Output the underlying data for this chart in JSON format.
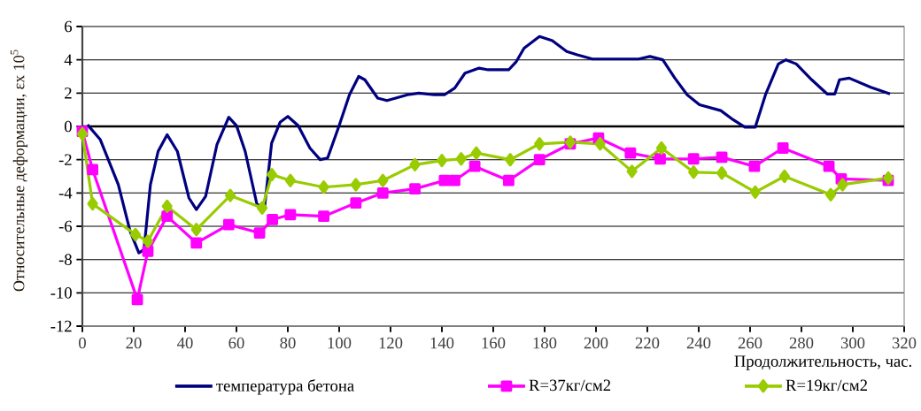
{
  "chart_data": {
    "type": "line",
    "ylabel": "Относительные деформации, εx 10$^{5}$",
    "xlabel": "Продолжительность, час.",
    "xlim": [
      0,
      320
    ],
    "xticks": [
      0,
      20,
      40,
      60,
      80,
      100,
      120,
      140,
      160,
      180,
      200,
      220,
      240,
      260,
      280,
      300,
      320
    ],
    "ylim": [
      -12,
      6
    ],
    "yticks": [
      -12,
      -10,
      -8,
      -6,
      -4,
      -2,
      0,
      2,
      4,
      6
    ],
    "grid": "y",
    "legend": "bottom",
    "series": [
      {
        "name": "температура бетона",
        "color": "#000080",
        "marker": "none",
        "x": [
          2,
          7,
          14,
          18.6,
          22,
          24,
          26.5,
          29.5,
          33,
          37,
          41.5,
          44.4,
          48,
          52.4,
          57,
          60,
          63.4,
          68,
          71,
          73.7,
          77,
          80,
          84,
          88.6,
          92.6,
          95.5,
          100,
          104,
          107.6,
          110,
          115,
          118.6,
          122,
          126.6,
          131,
          137,
          141,
          145,
          149,
          154.5,
          158,
          166,
          169,
          172,
          178,
          183,
          188.6,
          192.7,
          198.6,
          216.6,
          221,
          226,
          230.7,
          235.5,
          240.3,
          248.6,
          253.4,
          258,
          262,
          266,
          271,
          274,
          278,
          284,
          290,
          293,
          294.8,
          298.6,
          307,
          314.5
        ],
        "values": [
          0.1,
          -0.8,
          -3.5,
          -6.3,
          -7.6,
          -7.4,
          -3.5,
          -1.5,
          -0.5,
          -1.5,
          -4.3,
          -5.0,
          -4.2,
          -1.1,
          0.55,
          0.05,
          -1.5,
          -4.7,
          -4.8,
          -1,
          0.25,
          0.6,
          0.05,
          -1.3,
          -2.0,
          -1.9,
          0.05,
          1.9,
          3.0,
          2.8,
          1.7,
          1.55,
          1.7,
          1.9,
          2.0,
          1.9,
          1.9,
          2.3,
          3.2,
          3.5,
          3.4,
          3.4,
          3.9,
          4.7,
          5.4,
          5.15,
          4.5,
          4.3,
          4.05,
          4.05,
          4.2,
          4.0,
          2.9,
          1.9,
          1.3,
          0.95,
          0.4,
          -0.05,
          -0.05,
          1.9,
          3.75,
          4.0,
          3.75,
          2.8,
          1.95,
          1.95,
          2.8,
          2.9,
          2.35,
          1.95
        ]
      },
      {
        "name": "R=37кг/см2",
        "color": "#ff00ff",
        "marker": "square",
        "x": [
          0,
          4,
          21.4,
          25.5,
          33,
          44.4,
          57,
          69,
          74,
          81,
          94,
          106.5,
          117,
          129.5,
          141,
          145,
          152.8,
          166,
          178,
          190,
          201,
          213.4,
          225,
          238,
          249,
          261.7,
          272.8,
          290.7,
          295.5,
          313.8
        ],
        "values": [
          -0.3,
          -2.6,
          -10.4,
          -7.5,
          -5.4,
          -7.0,
          -5.9,
          -6.4,
          -5.6,
          -5.3,
          -5.4,
          -4.6,
          -4.0,
          -3.75,
          -3.25,
          -3.25,
          -2.4,
          -3.25,
          -2.0,
          -1.05,
          -0.7,
          -1.6,
          -1.95,
          -1.95,
          -1.85,
          -2.4,
          -1.3,
          -2.4,
          -3.15,
          -3.25
        ]
      },
      {
        "name": "R=19кг/см2",
        "color": "#99cc00",
        "marker": "diamond",
        "x": [
          0,
          4,
          20.7,
          25.5,
          33,
          44.4,
          57.6,
          70,
          73.8,
          81,
          94,
          106.5,
          117,
          129.5,
          140,
          147.5,
          153.4,
          166.6,
          178,
          190,
          201.6,
          214,
          225.5,
          238,
          249,
          262,
          273.4,
          291.4,
          296,
          313.8
        ],
        "values": [
          -0.45,
          -4.65,
          -6.5,
          -6.9,
          -4.8,
          -6.2,
          -4.15,
          -4.9,
          -2.9,
          -3.25,
          -3.65,
          -3.5,
          -3.25,
          -2.3,
          -2.05,
          -1.95,
          -1.6,
          -2.0,
          -1.05,
          -0.95,
          -1.05,
          -2.7,
          -1.3,
          -2.75,
          -2.8,
          -3.95,
          -3.0,
          -4.1,
          -3.5,
          -3.1
        ]
      }
    ]
  }
}
